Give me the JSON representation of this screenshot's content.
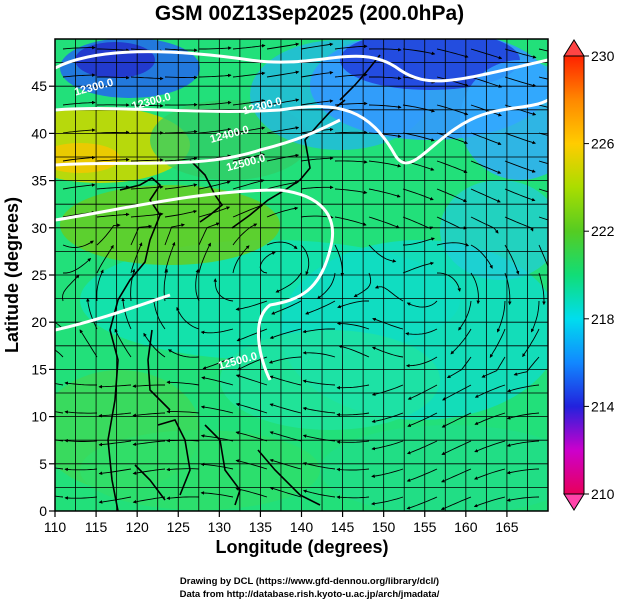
{
  "header": {
    "title": "GSM 00Z13Sep2025 (200.0hPa)"
  },
  "map": {
    "xlabel": "Longitude (degrees)",
    "ylabel": "Latitude  (degrees)",
    "x_ticks": [
      110,
      115,
      120,
      125,
      130,
      135,
      140,
      145,
      150,
      155,
      160,
      165
    ],
    "y_ticks": [
      0,
      5,
      10,
      15,
      20,
      25,
      30,
      35,
      40,
      45
    ],
    "xlim": [
      110,
      170
    ],
    "ylim": [
      0,
      50
    ],
    "contour_labels": [
      {
        "text": "12300.0",
        "lon": 112.5,
        "lat": 44
      },
      {
        "text": "12300.0",
        "lon": 119.5,
        "lat": 42.5
      },
      {
        "text": "12300.0",
        "lon": 133,
        "lat": 42
      },
      {
        "text": "12400.0",
        "lon": 129,
        "lat": 39
      },
      {
        "text": "12500.0",
        "lon": 131,
        "lat": 36
      },
      {
        "text": "12500.0",
        "lon": 130,
        "lat": 15
      }
    ]
  },
  "colorbar": {
    "min": 210,
    "max": 230,
    "tick_labels": [
      "230",
      "226",
      "222",
      "218",
      "214",
      "210"
    ],
    "colors": [
      "#e8005a",
      "#cc00cc",
      "#2222dd",
      "#1188ff",
      "#00ddee",
      "#11dd77",
      "#55cc22",
      "#aadd00",
      "#ffcc00",
      "#ff8800",
      "#ff2200"
    ]
  },
  "footer": {
    "credit1": "Drawing by DCL (https://www.gfd-dennou.org/library/dcl/)",
    "credit2": "Data from http://database.rish.kyoto-u.ac.jp/arch/jmadata/"
  }
}
